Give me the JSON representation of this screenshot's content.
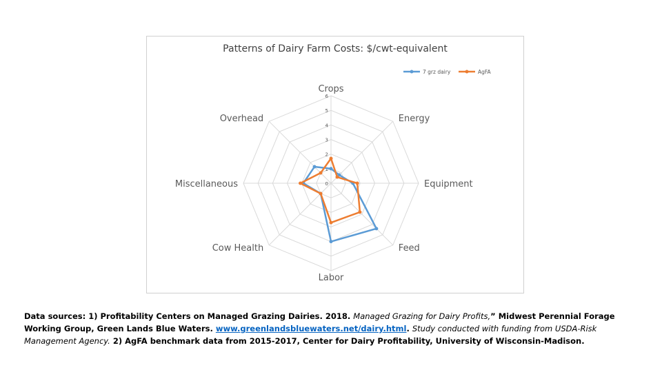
{
  "chart_data": {
    "type": "radar",
    "title": "Patterns of Dairy Farm Costs: $/cwt-equivalent",
    "axes": [
      "Crops",
      "Energy",
      "Equipment",
      "Feed",
      "Labor",
      "Cow Health",
      "Miscellaneous",
      "Overhead"
    ],
    "rlim": [
      0,
      6
    ],
    "ticks": [
      "0",
      "1",
      "2",
      "3",
      "4",
      "5",
      "6"
    ],
    "legend_position": "top-right",
    "grid": true,
    "series": [
      {
        "name": "7 grz dairy",
        "color": "#5b9bd5",
        "values": [
          1.0,
          0.8,
          1.5,
          4.4,
          4.0,
          1.0,
          1.9,
          1.6
        ]
      },
      {
        "name": "AgFA",
        "color": "#ed7d31",
        "values": [
          1.7,
          0.6,
          1.8,
          2.8,
          2.7,
          1.0,
          2.1,
          1.0
        ]
      }
    ]
  },
  "footnote": {
    "p1": "Data sources: 1) Profitability Centers on Managed Grazing Dairies. 2018.",
    "p2": "Managed Grazing for Dairy Profits,",
    "p3": "” Midwest Perennial Forage Working Group, Green Lands Blue Waters.",
    "link": "www.greenlandsbluewaters.net/dairy.html",
    "p4": ".",
    "p5": "Study conducted with funding from USDA-Risk Management Agency.",
    "p6": "2) AgFA benchmark data from 2015-2017, Center for Dairy Profitability, University of Wisconsin-Madison."
  }
}
